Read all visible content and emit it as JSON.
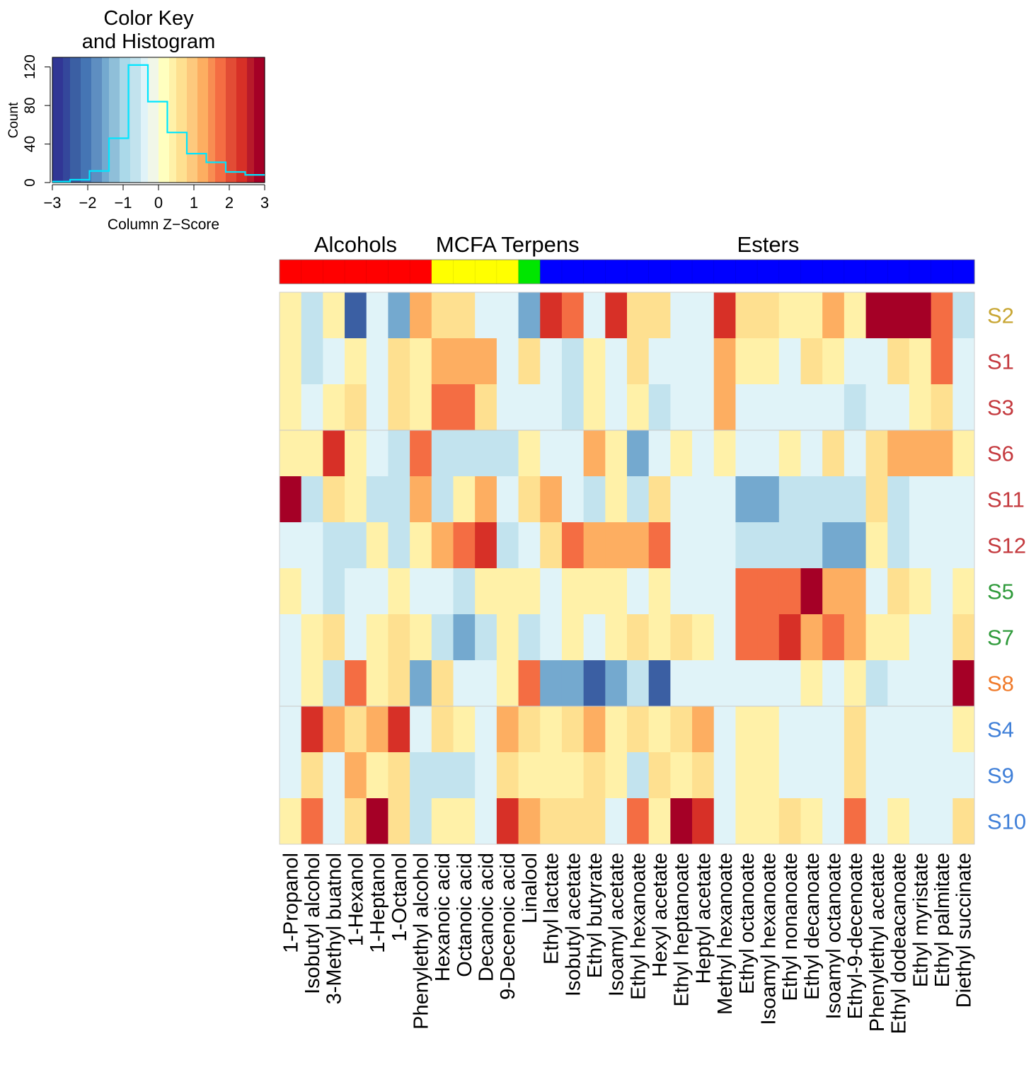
{
  "chart_data": {
    "type": "heatmap",
    "colors": {
      "palette": [
        "#313695",
        "#34479b",
        "#3b5fa3",
        "#4575b4",
        "#5e8ec1",
        "#74a9cf",
        "#8fbfd9",
        "#abd9e9",
        "#c2e3ee",
        "#e0f3f8",
        "#f1f7e8",
        "#ffffbf",
        "#fff1a8",
        "#fee090",
        "#fdc97d",
        "#fdae61",
        "#f88d52",
        "#f46d43",
        "#e24c35",
        "#d73027",
        "#b81a2a",
        "#a50026"
      ],
      "histogram": "#00e5ff"
    },
    "color_key": {
      "title_line1": "Color Key",
      "title_line2": "and Histogram",
      "xlabel": "Column Z−Score",
      "ylabel": "Count",
      "xlim": [
        -3,
        3
      ],
      "ylim": [
        0,
        130
      ],
      "xticks": [
        {
          "v": -3,
          "label": "−3"
        },
        {
          "v": -2,
          "label": "−2"
        },
        {
          "v": -1,
          "label": "−1"
        },
        {
          "v": 0,
          "label": "0"
        },
        {
          "v": 1,
          "label": "1"
        },
        {
          "v": 2,
          "label": "2"
        },
        {
          "v": 3,
          "label": "3"
        }
      ],
      "yticks": [
        {
          "v": 0,
          "label": "0"
        },
        {
          "v": 40,
          "label": "40"
        },
        {
          "v": 80,
          "label": "80"
        },
        {
          "v": 120,
          "label": "120"
        }
      ],
      "hist_edges": [
        -3,
        -2.5,
        -1.95,
        -1.4,
        -0.85,
        -0.3,
        0.25,
        0.8,
        1.35,
        1.9,
        2.45,
        3
      ],
      "hist_counts": [
        1,
        3,
        12,
        46,
        122,
        84,
        52,
        30,
        21,
        11,
        8
      ]
    },
    "groups": [
      {
        "name": "Alcohols",
        "color": "#ff0000",
        "start": 0,
        "count": 7
      },
      {
        "name": "MCFA",
        "color": "#ffff00",
        "start": 7,
        "count": 4
      },
      {
        "name": "Terpens",
        "color": "#00e600",
        "start": 11,
        "count": 1
      },
      {
        "name": "Esters",
        "color": "#0000ff",
        "start": 12,
        "count": 20
      }
    ],
    "group_labels": [
      {
        "text": "Alcohols",
        "col_center": 3.5
      },
      {
        "text": "MCFA Terpens",
        "col_center": 10.5
      },
      {
        "text": "Esters",
        "col_center": 22.5
      }
    ],
    "columns": [
      "1-Propanol",
      "Isobutyl alcohol",
      "3-Methyl buatnol",
      "1-Hexanol",
      "1-Heptanol",
      "1-Octanol",
      "Phenylethyl alcohol",
      "Hexanoic acid",
      "Octanoic acid",
      "Decanoic acid",
      "9-Decenoic acid",
      "Linalool",
      "Ethyl lactate",
      "Isobutyl acetate",
      "Ethyl butyrate",
      "Isoamyl acetate",
      "Ethyl hexanoate",
      "Hexyl acetate",
      "Ethyl heptanoate",
      "Heptyl acetate",
      "Methyl hexanoate",
      "Ethyl octanoate",
      "Isoamyl hexanoate",
      "Ethyl nonanoate",
      "Ethyl decanoate",
      "Isoamyl octanoate",
      "Ethyl-9-decenoate",
      "Phenylethyl acetate",
      "Ethyl dodeacanoate",
      "Ethyl myristate",
      "Ethyl palmitate",
      "Diethyl succinate"
    ],
    "rows": [
      {
        "label": "S2",
        "color": "#c8a633",
        "values": [
          0.3,
          -0.8,
          0.3,
          -2.3,
          -0.3,
          -1.4,
          1.2,
          0.8,
          0.8,
          -0.3,
          -0.3,
          -1.4,
          2.3,
          1.8,
          -0.3,
          2.3,
          0.8,
          0.8,
          -0.3,
          -0.3,
          2.3,
          0.8,
          0.8,
          0.3,
          0.3,
          1.2,
          0.3,
          2.9,
          2.9,
          2.9,
          1.8,
          -0.8
        ]
      },
      {
        "label": "S1",
        "color": "#c4393e",
        "values": [
          0.3,
          -0.8,
          -0.3,
          0.3,
          -0.3,
          0.8,
          0.3,
          1.2,
          1.2,
          1.2,
          -0.3,
          0.8,
          -0.3,
          -0.8,
          0.3,
          -0.3,
          0.8,
          -0.3,
          -0.3,
          -0.3,
          1.2,
          0.3,
          0.3,
          -0.3,
          0.8,
          0.3,
          -0.3,
          -0.3,
          0.8,
          0.3,
          1.8,
          -0.3
        ]
      },
      {
        "label": "S3",
        "color": "#c4393e",
        "values": [
          0.3,
          -0.3,
          0.3,
          0.8,
          -0.3,
          0.8,
          0.3,
          1.8,
          1.8,
          0.8,
          -0.3,
          -0.3,
          -0.3,
          -0.8,
          0.3,
          -0.3,
          0.3,
          -0.8,
          -0.3,
          -0.3,
          1.2,
          -0.3,
          -0.3,
          -0.3,
          -0.3,
          -0.3,
          -0.8,
          -0.3,
          -0.3,
          0.3,
          0.8,
          -0.3
        ]
      },
      {
        "label": "S6",
        "color": "#c4393e",
        "values": [
          0.3,
          0.3,
          2.3,
          0.3,
          -0.3,
          -0.8,
          1.8,
          -0.8,
          -0.8,
          -0.8,
          -0.8,
          0.3,
          -0.3,
          -0.3,
          1.2,
          0.3,
          -1.4,
          -0.3,
          0.3,
          -0.3,
          0.3,
          -0.3,
          -0.3,
          0.3,
          -0.3,
          0.8,
          -0.3,
          0.8,
          1.2,
          1.2,
          1.2,
          0.3
        ]
      },
      {
        "label": "S11",
        "color": "#c4393e",
        "values": [
          2.9,
          -0.8,
          0.8,
          0.3,
          -0.8,
          -0.8,
          1.2,
          -0.8,
          0.3,
          1.2,
          -0.3,
          0.8,
          1.2,
          -0.3,
          -0.8,
          0.3,
          -0.8,
          0.8,
          -0.3,
          -0.3,
          -0.3,
          -1.4,
          -1.4,
          -0.8,
          -0.8,
          -0.8,
          -0.8,
          0.8,
          -0.8,
          -0.3,
          -0.3,
          -0.3
        ]
      },
      {
        "label": "S12",
        "color": "#c4393e",
        "values": [
          -0.3,
          -0.3,
          -0.8,
          -0.8,
          0.3,
          -0.8,
          0.3,
          1.2,
          1.8,
          2.3,
          -0.8,
          -0.3,
          0.8,
          1.8,
          1.2,
          1.2,
          1.2,
          1.8,
          -0.3,
          -0.3,
          -0.3,
          -0.8,
          -0.8,
          -0.8,
          -0.8,
          -1.4,
          -1.4,
          0.3,
          -0.8,
          -0.3,
          -0.3,
          -0.3
        ]
      },
      {
        "label": "S5",
        "color": "#2e9a3a",
        "values": [
          0.3,
          -0.3,
          -0.8,
          -0.3,
          -0.3,
          0.3,
          -0.3,
          -0.3,
          -0.8,
          0.3,
          0.3,
          0.3,
          -0.3,
          0.3,
          0.3,
          0.3,
          -0.3,
          0.3,
          -0.3,
          -0.3,
          -0.3,
          1.8,
          1.8,
          1.8,
          2.9,
          1.2,
          1.2,
          -0.3,
          0.8,
          0.3,
          -0.3,
          0.3
        ]
      },
      {
        "label": "S7",
        "color": "#2e9a3a",
        "values": [
          -0.3,
          0.3,
          0.8,
          -0.3,
          0.3,
          0.8,
          0.3,
          -0.8,
          -1.4,
          -0.8,
          0.3,
          -0.8,
          -0.3,
          0.3,
          -0.3,
          0.3,
          0.8,
          0.3,
          0.8,
          0.3,
          -0.3,
          1.8,
          1.8,
          2.3,
          1.2,
          1.8,
          1.2,
          0.3,
          0.3,
          -0.3,
          -0.3,
          0.8
        ]
      },
      {
        "label": "S8",
        "color": "#f07a2a",
        "values": [
          -0.3,
          0.3,
          -0.8,
          1.8,
          0.3,
          0.8,
          -1.4,
          0.8,
          -0.3,
          -0.3,
          0.3,
          1.8,
          -1.4,
          -1.4,
          -2.3,
          -1.4,
          -0.8,
          -2.3,
          -0.3,
          -0.3,
          -0.3,
          -0.3,
          -0.3,
          -0.3,
          0.3,
          -0.3,
          0.3,
          -0.8,
          -0.3,
          -0.3,
          -0.3,
          2.9
        ]
      },
      {
        "label": "S4",
        "color": "#3f7fd8",
        "values": [
          -0.3,
          2.3,
          1.2,
          0.8,
          1.2,
          2.3,
          -0.3,
          0.8,
          0.3,
          -0.3,
          1.2,
          0.8,
          0.3,
          0.8,
          1.2,
          0.3,
          0.8,
          0.3,
          0.8,
          1.2,
          -0.3,
          0.3,
          0.3,
          -0.3,
          -0.3,
          -0.3,
          0.8,
          -0.3,
          -0.3,
          -0.3,
          -0.3,
          0.3
        ]
      },
      {
        "label": "S9",
        "color": "#3f7fd8",
        "values": [
          -0.3,
          0.8,
          -0.3,
          1.2,
          0.3,
          0.8,
          -0.8,
          -0.8,
          -0.8,
          -0.3,
          0.8,
          0.3,
          0.3,
          0.3,
          0.8,
          0.3,
          -0.8,
          0.8,
          0.3,
          0.8,
          -0.3,
          0.3,
          0.3,
          -0.3,
          -0.3,
          -0.3,
          0.8,
          -0.3,
          -0.3,
          -0.3,
          -0.3,
          -0.3
        ]
      },
      {
        "label": "S10",
        "color": "#3f7fd8",
        "values": [
          0.3,
          1.8,
          -0.3,
          0.8,
          2.9,
          0.8,
          -0.8,
          0.3,
          0.3,
          -0.3,
          2.3,
          1.2,
          0.8,
          0.8,
          0.8,
          -0.3,
          1.8,
          0.3,
          2.9,
          2.3,
          -0.3,
          0.3,
          0.3,
          0.8,
          0.3,
          -0.3,
          1.8,
          -0.3,
          0.3,
          -0.3,
          -0.3,
          0.8
        ]
      }
    ]
  }
}
